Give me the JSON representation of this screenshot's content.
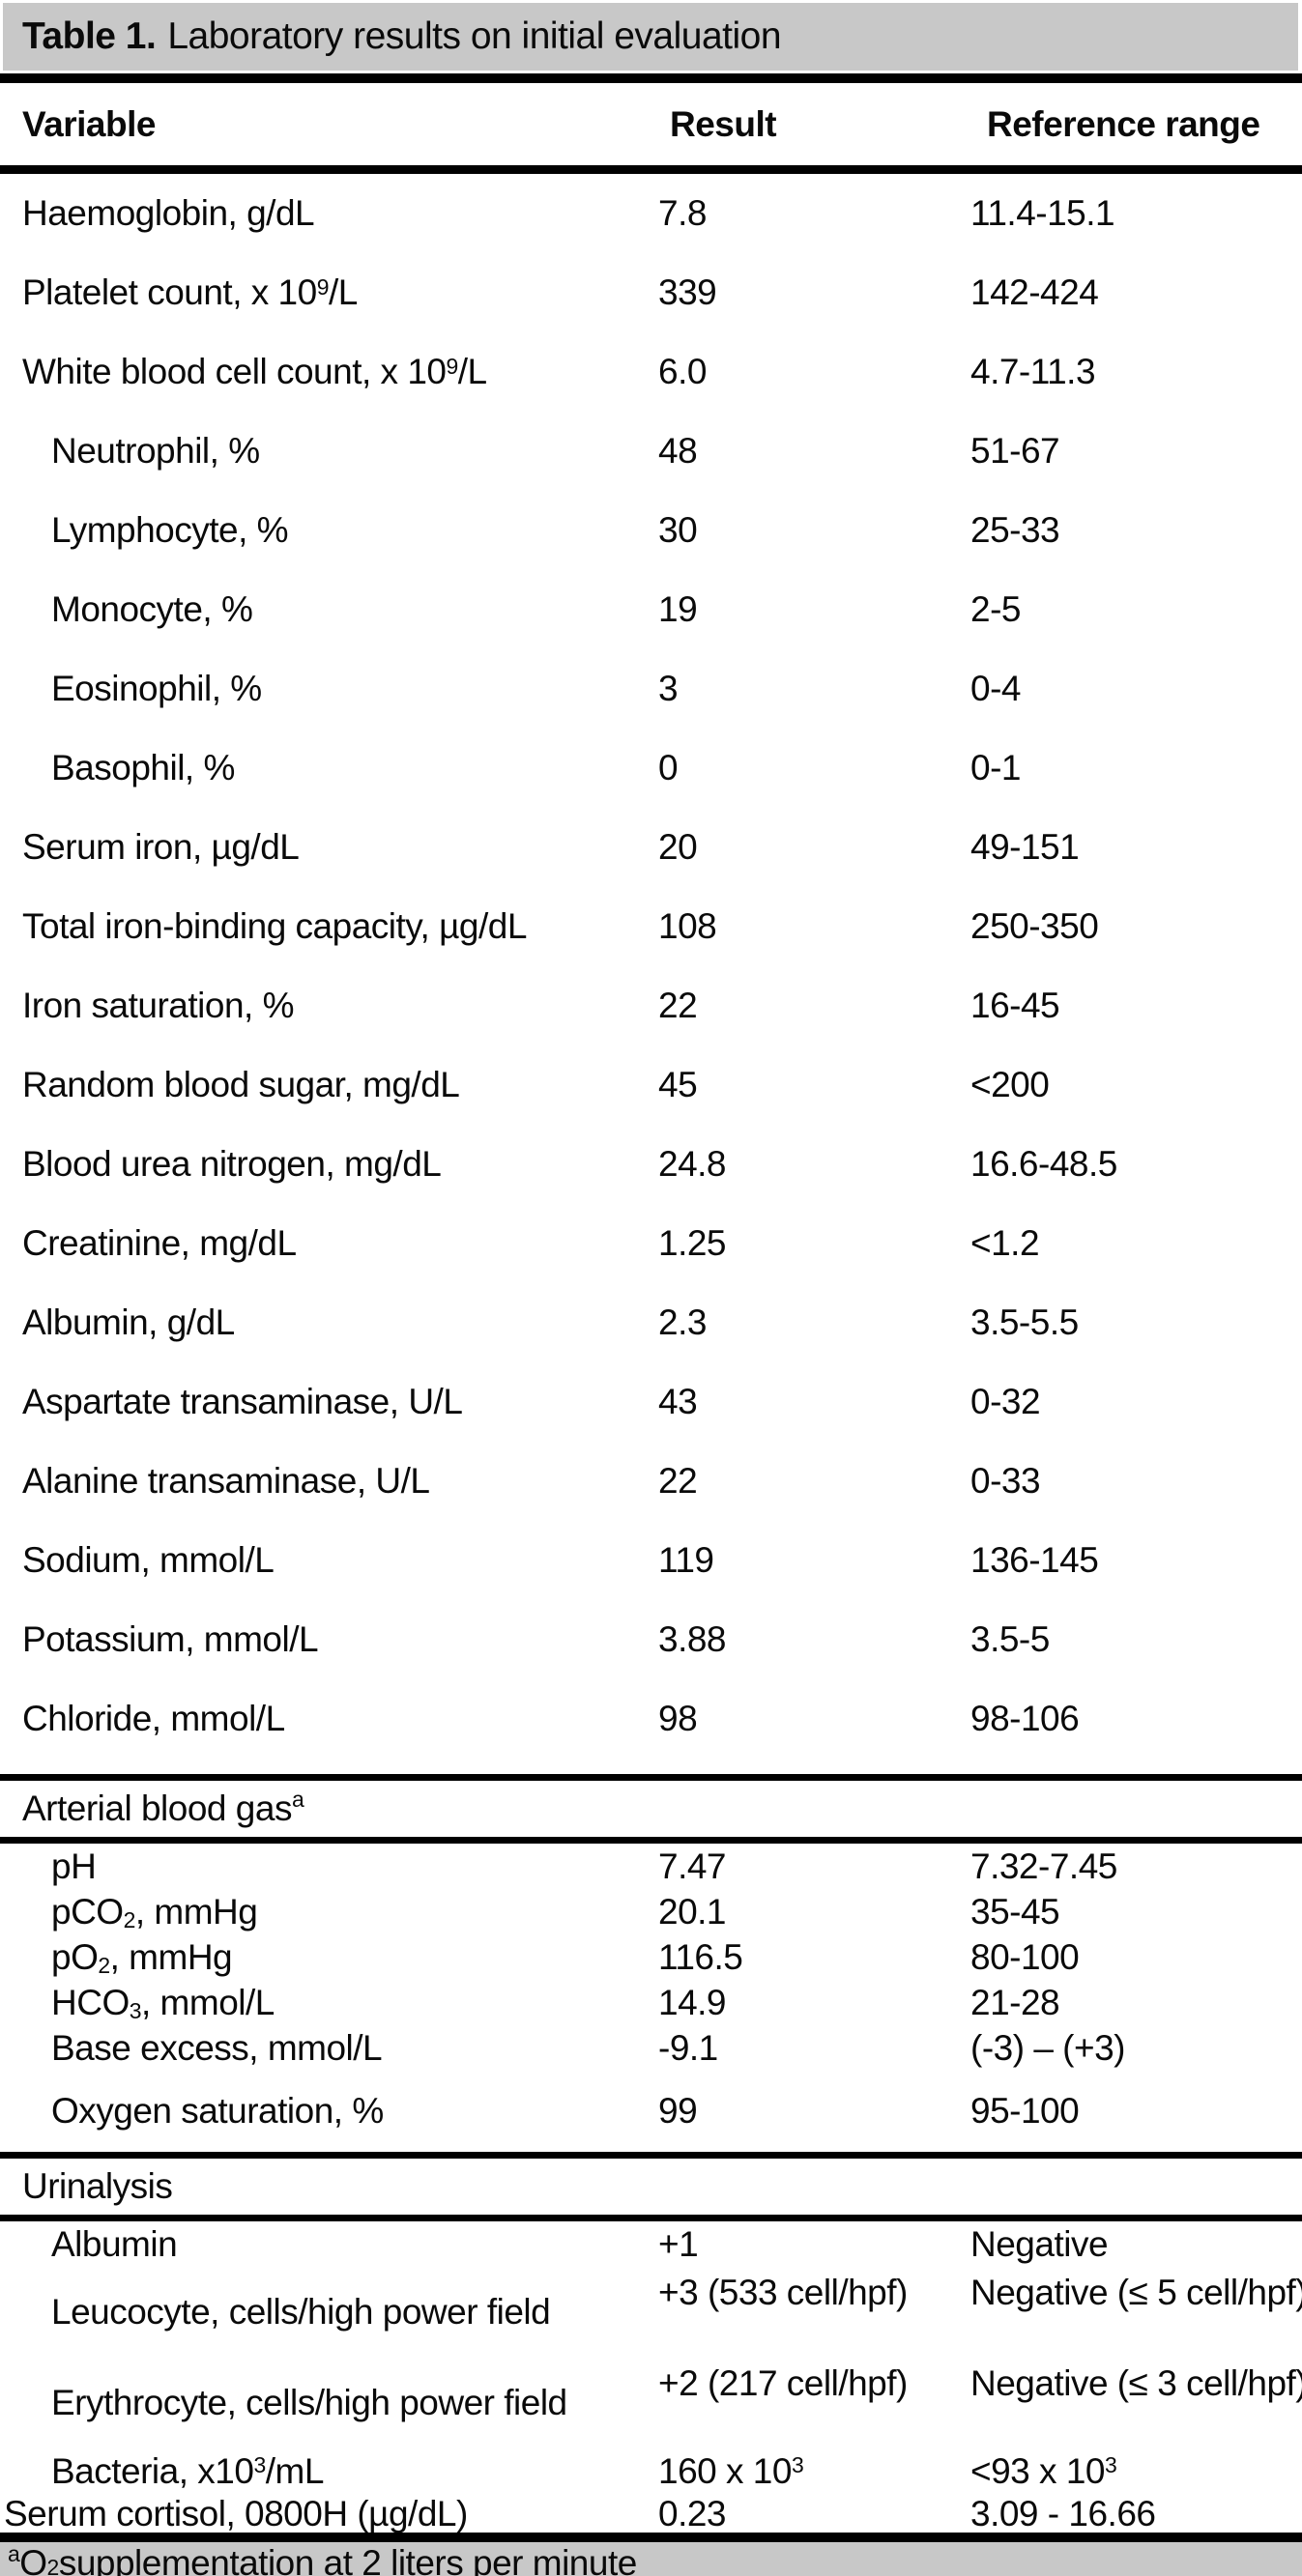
{
  "title": {
    "label": "Table 1.",
    "text": "Laboratory results on initial evaluation"
  },
  "columns": {
    "variable": "Variable",
    "result": "Result",
    "reference": "Reference range"
  },
  "main_rows": [
    {
      "label": "Haemoglobin, g/dL",
      "result": "7.8",
      "reference": "11.4-15.1"
    },
    {
      "label": "Platelet count, x 10^{9}/L",
      "result": "339",
      "reference": "142-424"
    },
    {
      "label": "White blood cell count, x 10^{9}/L",
      "result": "6.0",
      "reference": "4.7-11.3"
    },
    {
      "label": "Neutrophil, %",
      "result": "48",
      "reference": "51-67",
      "indent": true
    },
    {
      "label": "Lymphocyte, %",
      "result": "30",
      "reference": "25-33",
      "indent": true
    },
    {
      "label": "Monocyte, %",
      "result": "19",
      "reference": "2-5",
      "indent": true
    },
    {
      "label": "Eosinophil, %",
      "result": "3",
      "reference": "0-4",
      "indent": true
    },
    {
      "label": "Basophil, %",
      "result": "0",
      "reference": "0-1",
      "indent": true
    },
    {
      "label": "Serum iron, µg/dL",
      "result": "20",
      "reference": "49-151"
    },
    {
      "label": "Total iron-binding capacity, µg/dL",
      "result": "108",
      "reference": "250-350"
    },
    {
      "label": "Iron saturation, %",
      "result": "22",
      "reference": "16-45"
    },
    {
      "label": "Random blood sugar, mg/dL",
      "result": "45",
      "reference": "<200"
    },
    {
      "label": "Blood urea nitrogen, mg/dL",
      "result": "24.8",
      "reference": "16.6-48.5"
    },
    {
      "label": "Creatinine, mg/dL",
      "result": "1.25",
      "reference": "<1.2"
    },
    {
      "label": "Albumin, g/dL",
      "result": "2.3",
      "reference": "3.5-5.5"
    },
    {
      "label": "Aspartate transaminase, U/L",
      "result": "43",
      "reference": "0-32"
    },
    {
      "label": "Alanine transaminase, U/L",
      "result": "22",
      "reference": "0-33"
    },
    {
      "label": "Sodium, mmol/L",
      "result": "119",
      "reference": "136-145"
    },
    {
      "label": "Potassium, mmol/L",
      "result": "3.88",
      "reference": "3.5-5"
    },
    {
      "label": "Chloride, mmol/L",
      "result": "98",
      "reference": "98-106"
    }
  ],
  "abg": {
    "header": "Arterial blood gas^{a}",
    "rows": [
      {
        "label": "pH",
        "result": "7.47",
        "reference": "7.32-7.45",
        "indent": true
      },
      {
        "label": "pCO_{2}, mmHg",
        "result": "20.1",
        "reference": "35-45",
        "indent": true
      },
      {
        "label": "pO_{2}, mmHg",
        "result": "116.5",
        "reference": "80-100",
        "indent": true
      },
      {
        "label": "HCO_{3}, mmol/L",
        "result": "14.9",
        "reference": "21-28",
        "indent": true
      },
      {
        "label": "Base excess, mmol/L",
        "result": "-9.1",
        "reference": "(-3) – (+3)",
        "indent": true
      },
      {
        "label": "Oxygen saturation, %",
        "result": "99",
        "reference": "95-100",
        "indent": true,
        "extra_space": true
      }
    ]
  },
  "urinalysis": {
    "header": "Urinalysis",
    "rows": [
      {
        "label": "Albumin",
        "result": "+1",
        "reference": "Negative",
        "indent": true
      },
      {
        "label": "Leucocyte, cells/high power field",
        "result": "+3 (533 cell/hpf)",
        "reference": "Negative (≤ 5 cell/hpf)",
        "indent": true,
        "two_line": true
      },
      {
        "label": "Erythrocyte, cells/high power field",
        "result": "+2 (217 cell/hpf)",
        "reference": "Negative (≤ 3 cell/hpf)",
        "indent": true,
        "two_line": true
      },
      {
        "label": "Bacteria, x10^{3}/mL",
        "result": "160 x 10^{3}",
        "reference": "<93 x 10^{3}",
        "indent": true
      }
    ]
  },
  "cortisol_row": {
    "label": "Serum cortisol, 0800H (µg/dL)",
    "result": "0.23",
    "reference": "3.09 - 16.66"
  },
  "footnote": "^{a}O_{2} supplementation at 2 liters per minute"
}
